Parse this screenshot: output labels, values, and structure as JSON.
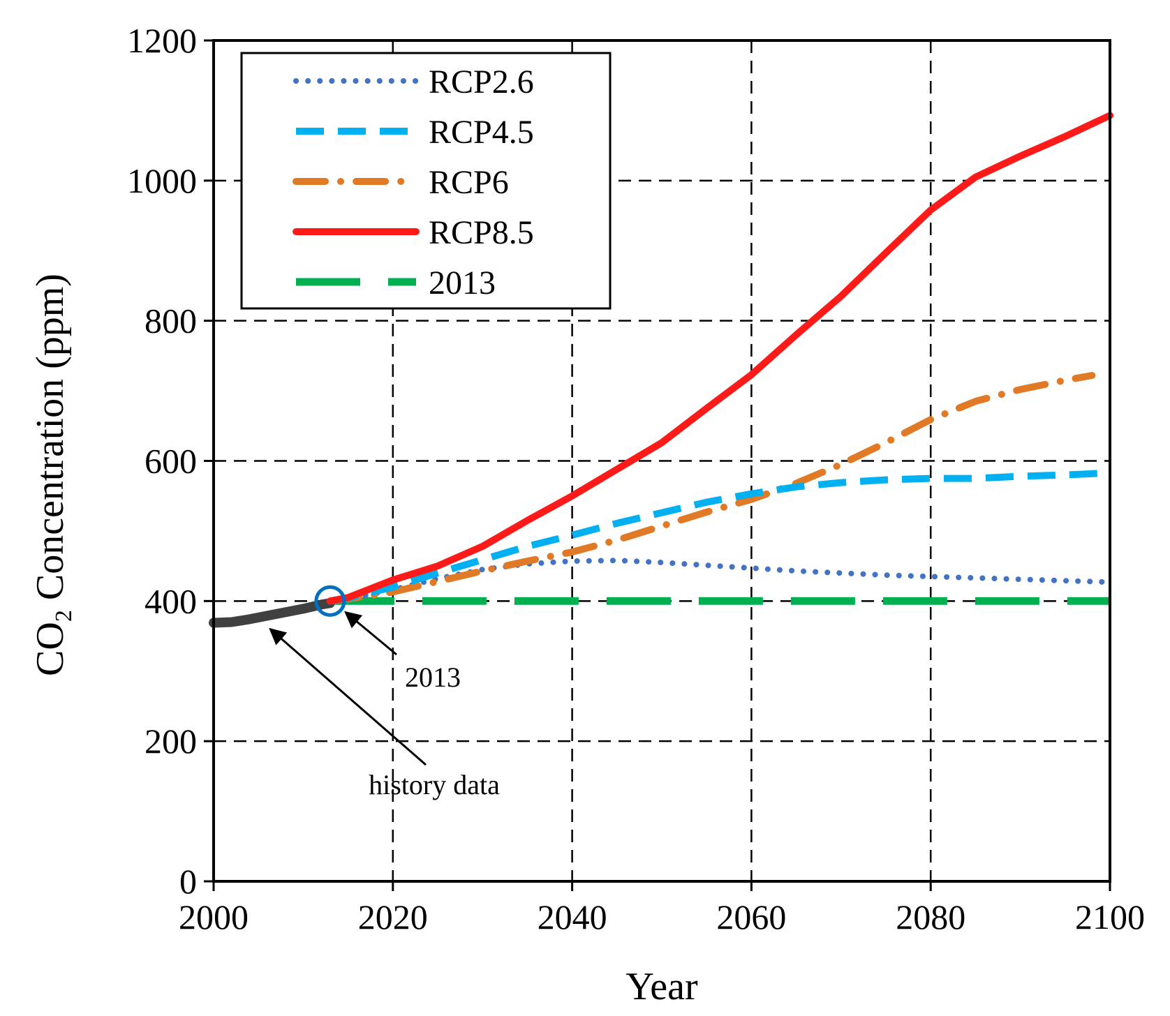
{
  "chart_data": {
    "type": "line",
    "title": "",
    "xlabel": "Year",
    "ylabel": "CO2 Concentration (ppm)",
    "ylabel_parts": {
      "prefix": "CO",
      "subscript": "2",
      "suffix": " Concentration (ppm)"
    },
    "xlim": [
      2000,
      2100
    ],
    "ylim": [
      0,
      1200
    ],
    "x_ticks": [
      2000,
      2020,
      2040,
      2060,
      2080,
      2100
    ],
    "y_ticks": [
      0,
      200,
      400,
      600,
      800,
      1000,
      1200
    ],
    "x_tick_labels": [
      "2000",
      "2020",
      "2040",
      "2060",
      "2080",
      "2100"
    ],
    "y_tick_labels": [
      "0",
      "200",
      "400",
      "600",
      "800",
      "1000",
      "1200"
    ],
    "grid": true,
    "legend_position": "top-left",
    "series": [
      {
        "name": "RCP2.6",
        "color": "#4472C4",
        "style": "dotted",
        "x": [
          2013,
          2015,
          2020,
          2025,
          2030,
          2035,
          2040,
          2045,
          2050,
          2055,
          2060,
          2065,
          2070,
          2075,
          2080,
          2085,
          2090,
          2095,
          2100
        ],
        "y": [
          400,
          403,
          416,
          432,
          445,
          453,
          457,
          458,
          455,
          451,
          447,
          443,
          440,
          437,
          435,
          433,
          431,
          429,
          427
        ]
      },
      {
        "name": "RCP4.5",
        "color": "#00B0F0",
        "style": "dashed",
        "x": [
          2013,
          2015,
          2020,
          2025,
          2030,
          2035,
          2040,
          2045,
          2050,
          2055,
          2060,
          2065,
          2070,
          2075,
          2080,
          2085,
          2090,
          2095,
          2100
        ],
        "y": [
          400,
          404,
          420,
          440,
          459,
          478,
          494,
          511,
          526,
          541,
          553,
          563,
          569,
          573,
          575,
          575,
          578,
          580,
          583
        ]
      },
      {
        "name": "RCP6",
        "color": "#E07A26",
        "style": "dashdot",
        "x": [
          2013,
          2015,
          2020,
          2025,
          2030,
          2035,
          2040,
          2045,
          2050,
          2055,
          2060,
          2065,
          2070,
          2075,
          2080,
          2085,
          2090,
          2095,
          2098
        ],
        "y": [
          400,
          403,
          413,
          428,
          443,
          457,
          470,
          487,
          507,
          527,
          545,
          568,
          595,
          626,
          659,
          685,
          702,
          715,
          722
        ]
      },
      {
        "name": "RCP8.5",
        "color": "#FF1A1A",
        "style": "solid",
        "x": [
          2013,
          2015,
          2020,
          2025,
          2030,
          2035,
          2040,
          2045,
          2050,
          2055,
          2060,
          2065,
          2070,
          2075,
          2080,
          2085,
          2090,
          2095,
          2100
        ],
        "y": [
          400,
          405,
          430,
          450,
          478,
          515,
          550,
          588,
          626,
          675,
          723,
          780,
          835,
          897,
          958,
          1005,
          1035,
          1063,
          1093
        ]
      },
      {
        "name": "2013",
        "color": "#00B050",
        "style": "longdash",
        "x": [
          2013,
          2100
        ],
        "y": [
          400,
          400
        ]
      },
      {
        "name": "history data",
        "color": "#404040",
        "style": "solid",
        "show_in_legend": false,
        "x": [
          2000,
          2002,
          2004,
          2006,
          2008,
          2010,
          2012,
          2013
        ],
        "y": [
          369,
          370,
          374,
          379,
          384,
          389,
          395,
          397
        ]
      }
    ],
    "annotations": [
      {
        "text": "2013",
        "point": [
          2013,
          400
        ]
      },
      {
        "text": "history data",
        "point": [
          2006,
          380
        ]
      }
    ]
  }
}
